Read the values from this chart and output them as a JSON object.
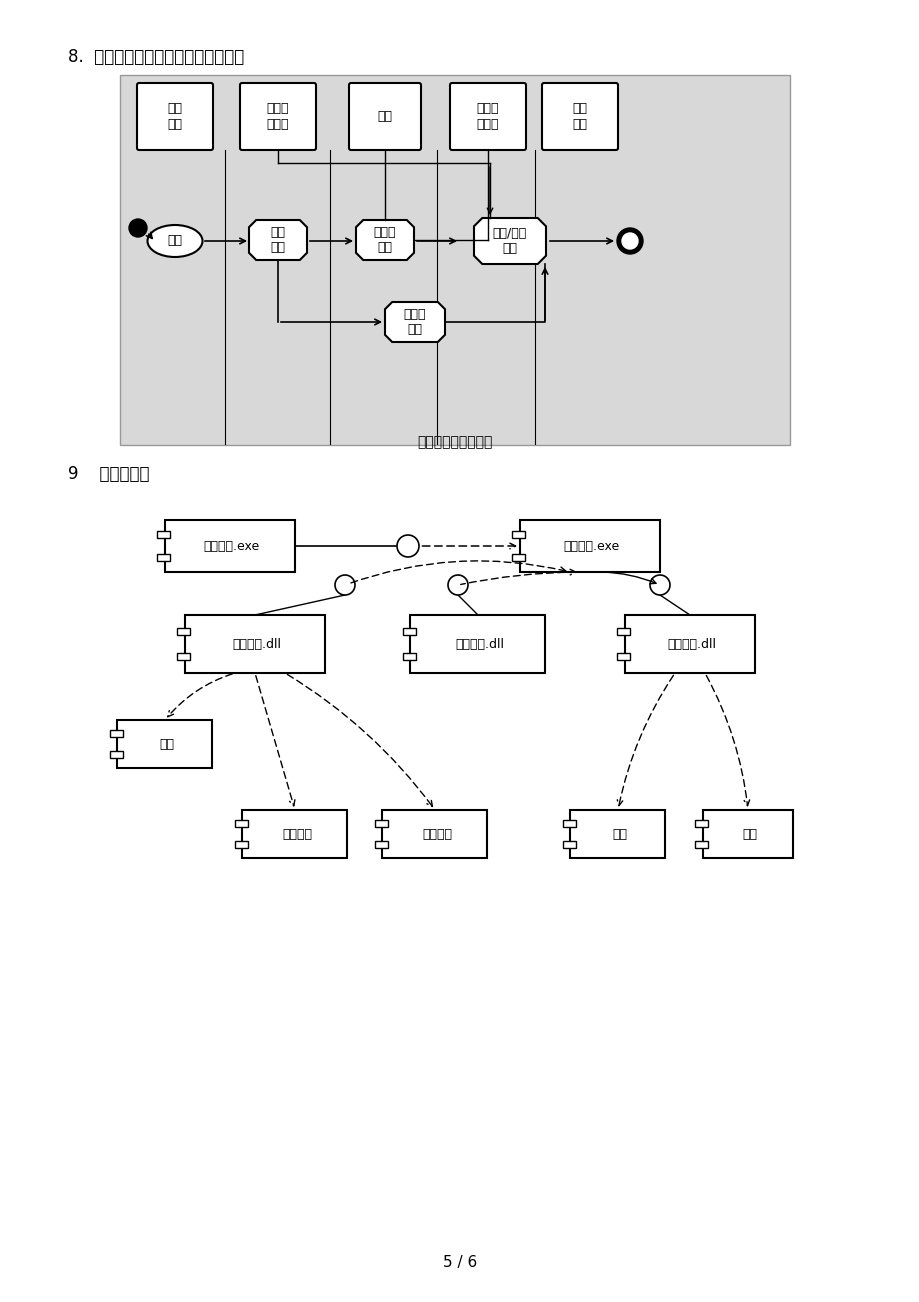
{
  "page_bg": "#ffffff",
  "page_num": "5 / 6",
  "section8_label": "8.  建立并绘制设置开设课程活动图；",
  "section9_label": "9    建立组件图",
  "activity_caption": "设置开设课程活动图",
  "activity_bg": "#d8d8d8",
  "lane_labels": [
    "注册\n表单",
    "开设课\n程表单",
    "课程",
    "选课注\n册表单",
    "开设\n课程"
  ],
  "nodes": {
    "login": "登录",
    "xinkai": "新开\n课程",
    "qu": "取课程\n信息",
    "add": "增加/删除\n课程",
    "quxuan": "取选课\n信息"
  },
  "comp_labels": {
    "caiwu": "财务系统.exe",
    "jiaoxue": "教学管理.exe",
    "kecheng": "课程管理.dll",
    "chengji": "成绩管理.dll",
    "renshi": "人事信息.dll",
    "kc": "课程",
    "kaikc": "开设课程",
    "xuankc": "选课注册",
    "jiaoshi": "数师",
    "xuesheng": "学生"
  }
}
